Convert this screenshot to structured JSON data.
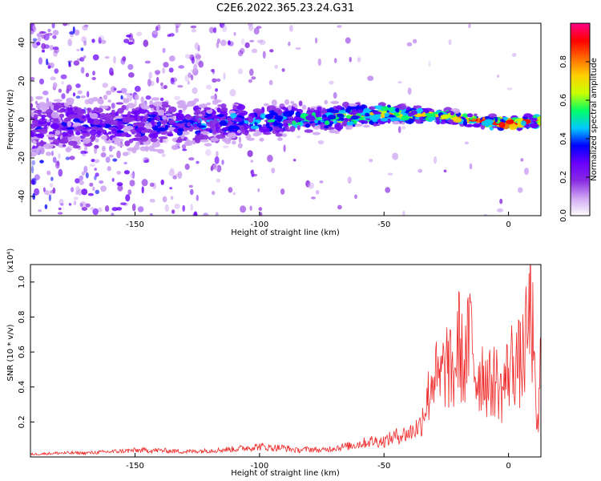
{
  "title": "C2E6.2022.365.23.24.G31",
  "chart_data": [
    {
      "type": "heatmap",
      "title": "C2E6.2022.365.23.24.G31",
      "xlabel": "Height of straight line (km)",
      "ylabel": "Frequency (Hz)",
      "xlim": [
        -192,
        13
      ],
      "ylim": [
        -50,
        50
      ],
      "x_ticks": [
        -150,
        -100,
        -50,
        0
      ],
      "x_tick_labels": [
        "-150",
        "-100",
        "-50",
        "0"
      ],
      "y_ticks": [
        -40,
        -20,
        0,
        20,
        40
      ],
      "y_tick_labels": [
        "-40",
        "-20",
        "0",
        "20",
        "40"
      ],
      "colorbar": {
        "label": "Normalized spectral amplitude",
        "range": [
          0,
          1
        ],
        "ticks": [
          0.0,
          0.2,
          0.4,
          0.6,
          0.8
        ],
        "tick_labels": [
          "0.0",
          "0.2",
          "0.4",
          "0.6",
          "0.8"
        ],
        "colors": [
          "#ffffff",
          "#cfa6f2",
          "#8a2be2",
          "#6a00ff",
          "#0000ff",
          "#00c8ff",
          "#00ff66",
          "#c8ff00",
          "#ffd000",
          "#ff6a00",
          "#ff0000",
          "#ff0088"
        ]
      },
      "ridge": {
        "x": [
          -192,
          -170,
          -150,
          -130,
          -110,
          -90,
          -70,
          -50,
          -30,
          -10,
          0,
          13
        ],
        "frequency": [
          -2,
          -3,
          -3,
          -2,
          -1,
          0,
          1,
          3,
          2,
          -1,
          -2,
          -1
        ],
        "amplitude": [
          0.3,
          0.35,
          0.35,
          0.4,
          0.45,
          0.5,
          0.6,
          0.75,
          0.7,
          0.85,
          0.95,
          0.8
        ]
      },
      "grid": false
    },
    {
      "type": "line",
      "xlabel": "Height of straight line (km)",
      "ylabel": "SNR (10 * v/v)",
      "scale_label": "(x10⁴)",
      "xlim": [
        -192,
        13
      ],
      "ylim": [
        0,
        1.1
      ],
      "x_ticks": [
        -150,
        -100,
        -50,
        0
      ],
      "x_tick_labels": [
        "-150",
        "-100",
        "-50",
        "0"
      ],
      "y_ticks": [
        0.2,
        0.4,
        0.6,
        0.8,
        1.0
      ],
      "y_tick_labels": [
        "0.2",
        "0.4",
        "0.6",
        "0.8",
        "1.0"
      ],
      "color": "#ee2a2a",
      "series": [
        {
          "x": [
            -192,
            -180,
            -170,
            -160,
            -150,
            -140,
            -130,
            -120,
            -110,
            -100,
            -95,
            -90,
            -85,
            -80,
            -75,
            -70,
            -65,
            -60,
            -55,
            -50,
            -45,
            -40,
            -35,
            -32,
            -30,
            -28,
            -25,
            -22,
            -20,
            -18,
            -15,
            -13,
            -10,
            -8,
            -5,
            -3,
            0,
            2,
            5,
            8,
            9,
            10,
            11,
            12,
            13
          ],
          "y": [
            0.02,
            0.03,
            0.03,
            0.04,
            0.05,
            0.05,
            0.04,
            0.05,
            0.06,
            0.08,
            0.07,
            0.07,
            0.05,
            0.06,
            0.05,
            0.07,
            0.08,
            0.1,
            0.12,
            0.12,
            0.16,
            0.18,
            0.25,
            0.4,
            0.55,
            0.45,
            0.6,
            0.5,
            0.75,
            0.55,
            0.8,
            0.5,
            0.55,
            0.45,
            0.5,
            0.4,
            0.55,
            0.62,
            0.58,
            0.8,
            1.05,
            0.65,
            0.25,
            0.2,
            0.7
          ]
        }
      ],
      "grid": false
    }
  ]
}
